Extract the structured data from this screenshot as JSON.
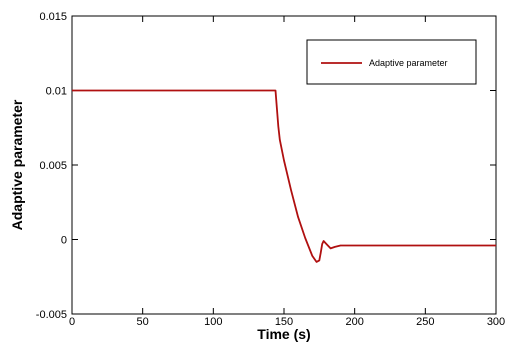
{
  "chart_data": {
    "type": "line",
    "xlabel": "Time (s)",
    "ylabel": "Adaptive parameter",
    "xlim": [
      0,
      300
    ],
    "ylim": [
      -0.005,
      0.015
    ],
    "xticks": [
      0,
      50,
      100,
      150,
      200,
      250,
      300
    ],
    "yticks": [
      -0.005,
      0,
      0.005,
      0.01,
      0.015
    ],
    "xtick_labels": [
      "0",
      "50",
      "100",
      "150",
      "200",
      "250",
      "300"
    ],
    "ytick_labels": [
      "-0.005",
      "0",
      "0.005",
      "0.01",
      "0.015"
    ],
    "grid": false,
    "legend_position": "top-right",
    "series": [
      {
        "name": "Adaptive parameter",
        "color": "#b01010",
        "x": [
          0,
          144,
          145,
          146,
          147,
          150,
          155,
          160,
          165,
          170,
          173,
          175,
          176,
          177,
          178,
          180,
          183,
          186,
          190,
          200,
          250,
          300
        ],
        "y": [
          0.01,
          0.01,
          0.0088,
          0.0076,
          0.0067,
          0.0053,
          0.0033,
          0.0015,
          0.0001,
          -0.0011,
          -0.0015,
          -0.0014,
          -0.0009,
          -0.0003,
          -0.0001,
          -0.0003,
          -0.0006,
          -0.0005,
          -0.0004,
          -0.0004,
          -0.0004,
          -0.0004
        ]
      }
    ]
  }
}
